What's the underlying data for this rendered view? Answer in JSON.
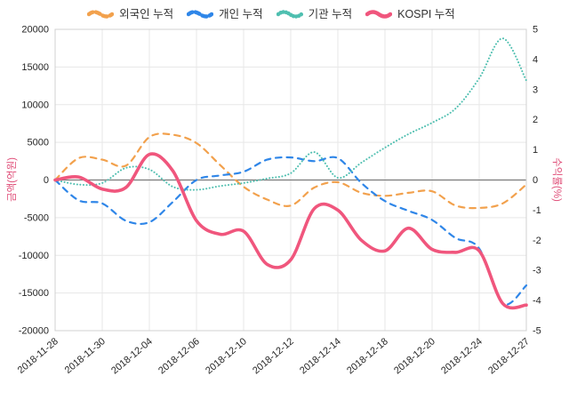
{
  "chart_data": {
    "type": "line",
    "title": "",
    "x": [
      "2018-11-28",
      "2018-11-29",
      "2018-11-30",
      "2018-12-03",
      "2018-12-04",
      "2018-12-05",
      "2018-12-06",
      "2018-12-07",
      "2018-12-10",
      "2018-12-11",
      "2018-12-12",
      "2018-12-13",
      "2018-12-14",
      "2018-12-17",
      "2018-12-18",
      "2018-12-19",
      "2018-12-20",
      "2018-12-21",
      "2018-12-24",
      "2018-12-26",
      "2018-12-27"
    ],
    "x_tick_labels": [
      "2018-11-28",
      "2018-11-30",
      "2018-12-04",
      "2018-12-06",
      "2018-12-10",
      "2018-12-12",
      "2018-12-14",
      "2018-12-18",
      "2018-12-20",
      "2018-12-24",
      "2018-12-27"
    ],
    "legend": [
      {
        "label": "외국인 누적",
        "color": "#f2a14d",
        "marker_dasharray": "5 3.5"
      },
      {
        "label": "개인 누적",
        "color": "#2f86e8",
        "marker_dasharray": "5 3.5"
      },
      {
        "label": "기관 누적",
        "color": "#4fbfb0",
        "marker_dasharray": "0.1 3"
      },
      {
        "label": "KOSPI 누적",
        "color": "#f0567d",
        "marker_dasharray": ""
      }
    ],
    "series": [
      {
        "name": "외국인 누적",
        "axis": "left",
        "color": "#f2a14d",
        "dash": "dashed",
        "dasharray": "6.5 6",
        "width": 2.2,
        "values": [
          0,
          2900,
          2700,
          1900,
          5700,
          6000,
          4900,
          2000,
          -900,
          -2600,
          -3400,
          -1000,
          -300,
          -1700,
          -2100,
          -1700,
          -1500,
          -3400,
          -3700,
          -3100,
          -600
        ]
      },
      {
        "name": "개인 누적",
        "axis": "left",
        "color": "#2f86e8",
        "dash": "dashed",
        "dasharray": "6.5 6",
        "width": 2.2,
        "values": [
          0,
          -2700,
          -3100,
          -5400,
          -5600,
          -2900,
          0,
          600,
          1100,
          2700,
          3000,
          2500,
          2900,
          -400,
          -2800,
          -4100,
          -5300,
          -7700,
          -9100,
          -16400,
          -14000
        ]
      },
      {
        "name": "기관 누적",
        "axis": "left",
        "color": "#4fbfb0",
        "dash": "dotted",
        "dasharray": "0.1 3.5",
        "width": 2,
        "values": [
          0,
          -600,
          -400,
          1600,
          1400,
          -900,
          -1300,
          -800,
          -400,
          200,
          900,
          3700,
          300,
          2300,
          4300,
          6100,
          7600,
          9500,
          13500,
          18800,
          13200
        ]
      },
      {
        "name": "KOSPI 누적",
        "axis": "right",
        "color": "#f0567d",
        "dash": "solid",
        "dasharray": "",
        "width": 3.6,
        "values": [
          0,
          0.1,
          -0.3,
          -0.25,
          0.85,
          0.3,
          -1.35,
          -1.8,
          -1.7,
          -2.8,
          -2.65,
          -0.95,
          -1.0,
          -2.0,
          -2.35,
          -1.6,
          -2.3,
          -2.4,
          -2.35,
          -4.1,
          -4.15
        ]
      }
    ],
    "left_axis": {
      "title": "금액(억원)",
      "min": -20000,
      "max": 20000,
      "tick_step": 5000
    },
    "right_axis": {
      "title": "수익률(%)",
      "min": -5,
      "max": 5,
      "tick_step": 1
    },
    "grid": true,
    "legend_position": "top",
    "colors": {
      "grid": "#e7e7e7",
      "zero_line": "#7a7a7a",
      "border": "#d0d0d0",
      "tick_text": "#262626",
      "axis_title": "#e0507a"
    }
  }
}
